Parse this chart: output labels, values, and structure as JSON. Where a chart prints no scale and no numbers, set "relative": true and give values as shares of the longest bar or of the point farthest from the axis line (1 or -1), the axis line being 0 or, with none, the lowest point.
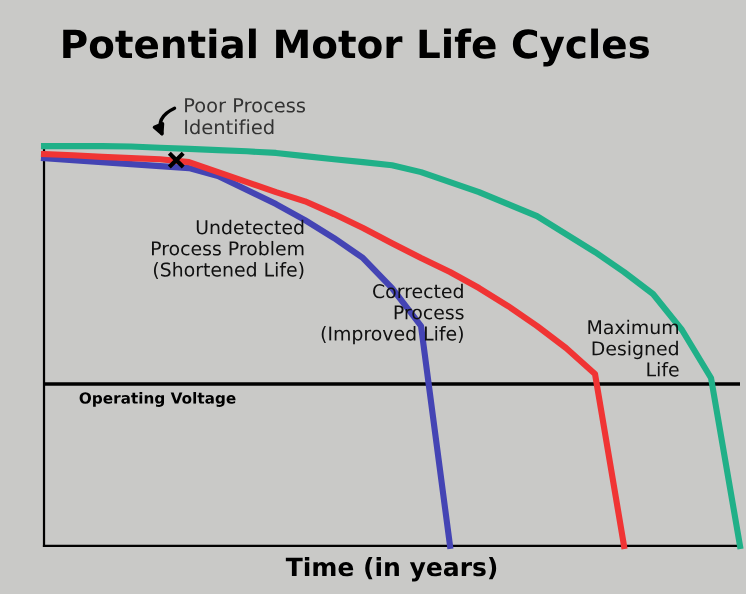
{
  "chart_data": {
    "type": "line",
    "title": "Potential Motor Life Cycles",
    "xlabel": "Time (in years)",
    "relative": true,
    "legend": false,
    "marker": "none",
    "line_style": "solid",
    "categories": [
      null,
      null,
      null,
      null,
      null,
      null,
      null,
      null,
      null,
      null,
      null,
      null,
      null,
      null,
      null,
      null,
      null,
      null,
      null,
      null,
      null,
      null,
      null,
      null,
      null
    ],
    "series": [
      {
        "name": "Undetected\nProcess Problem\n(Shortened Life)",
        "color": "#4444b4",
        "values": [
          0.97,
          0.965,
          0.96,
          0.955,
          0.95,
          0.945,
          0.925,
          0.89,
          0.855,
          0.815,
          0.77,
          0.72,
          0.645,
          0.55,
          0,
          null,
          null,
          null,
          null,
          null,
          null,
          null,
          null,
          null,
          null
        ]
      },
      {
        "name": "Corrected\nProcess\n(Improved Life)",
        "color": "#f03434",
        "values": [
          0.98,
          0.977,
          0.973,
          0.97,
          0.967,
          0.96,
          0.935,
          0.91,
          0.885,
          0.862,
          0.83,
          0.795,
          0.757,
          0.72,
          0.685,
          0.645,
          0.6,
          0.55,
          0.495,
          0.43,
          0,
          null,
          null,
          null,
          null
        ]
      },
      {
        "name": "Maximum\nDesigned\nLife",
        "color": "#20b088",
        "values": [
          1.0,
          1.0,
          1.0,
          0.999,
          0.996,
          0.993,
          0.99,
          0.987,
          0.983,
          0.975,
          0.967,
          0.96,
          0.952,
          0.935,
          0.91,
          0.885,
          0.855,
          0.825,
          0.78,
          0.735,
          0.685,
          0.63,
          0.54,
          0.42,
          0
        ]
      }
    ],
    "ref_lines": [
      {
        "axis": "y",
        "value": 0.405,
        "label": "Operating Voltage",
        "color": "#000000"
      }
    ],
    "annotations": [
      "Poor Process\nIdentified"
    ]
  }
}
